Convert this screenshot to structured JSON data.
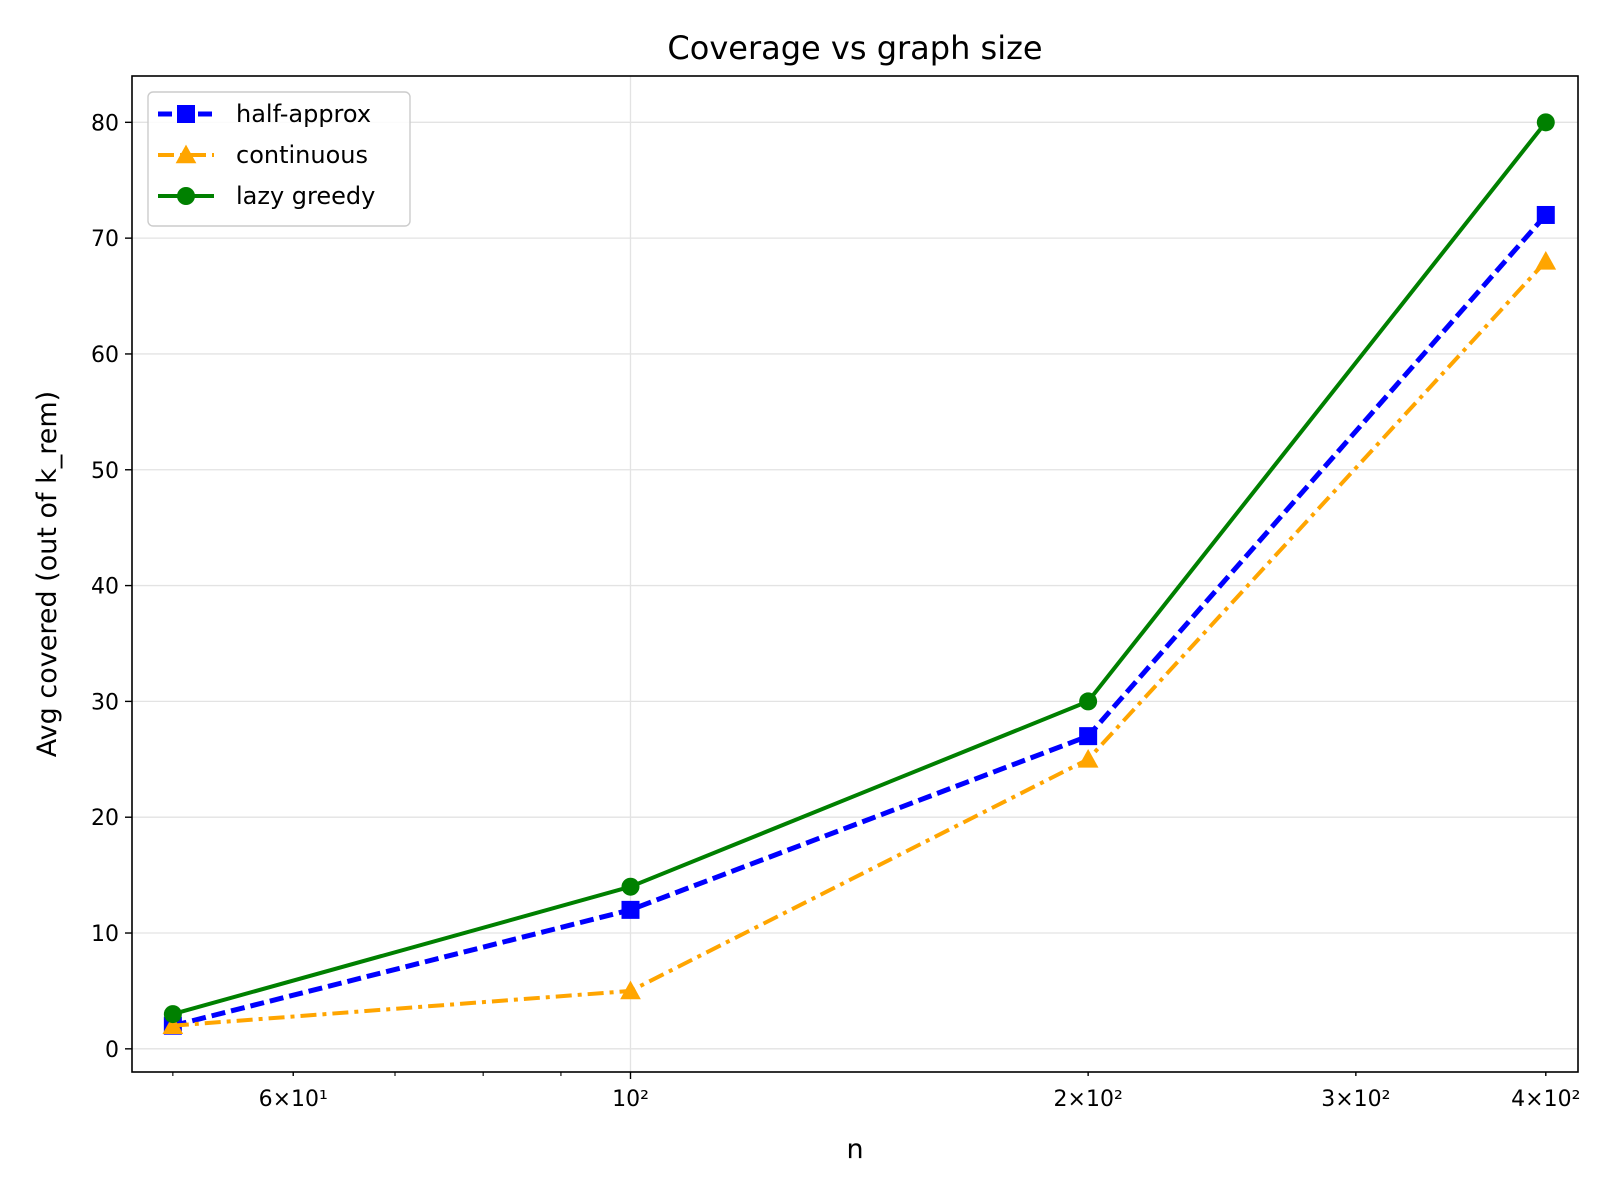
{
  "chart_data": {
    "type": "line",
    "title": "Coverage vs graph size",
    "xlabel": "n",
    "ylabel": "Avg covered (out of k_rem)",
    "xscale": "log",
    "xlim": [
      47,
      420
    ],
    "ylim": [
      -2,
      84
    ],
    "x": [
      50,
      100,
      200,
      400
    ],
    "x_ticks": [
      {
        "value": 60,
        "label": "6×10¹"
      },
      {
        "value": 100,
        "label": "10²"
      },
      {
        "value": 200,
        "label": "2×10²"
      },
      {
        "value": 300,
        "label": "3×10²"
      },
      {
        "value": 400,
        "label": "4×10²"
      }
    ],
    "x_minor_ticks": [
      50,
      70,
      80,
      90
    ],
    "y_ticks": [
      0,
      10,
      20,
      30,
      40,
      50,
      60,
      70,
      80
    ],
    "grid": true,
    "legend_position": "top-left",
    "series": [
      {
        "name": "half-approx",
        "values": [
          2,
          12,
          27,
          72
        ],
        "color": "#0000ff",
        "line_style": "dashed",
        "marker": "square"
      },
      {
        "name": "continuous",
        "values": [
          2,
          5,
          25,
          68
        ],
        "color": "#ffa500",
        "line_style": "dash-dot",
        "marker": "triangle"
      },
      {
        "name": "lazy greedy",
        "values": [
          3,
          14,
          30,
          80
        ],
        "color": "#008000",
        "line_style": "solid",
        "marker": "circle"
      }
    ]
  }
}
